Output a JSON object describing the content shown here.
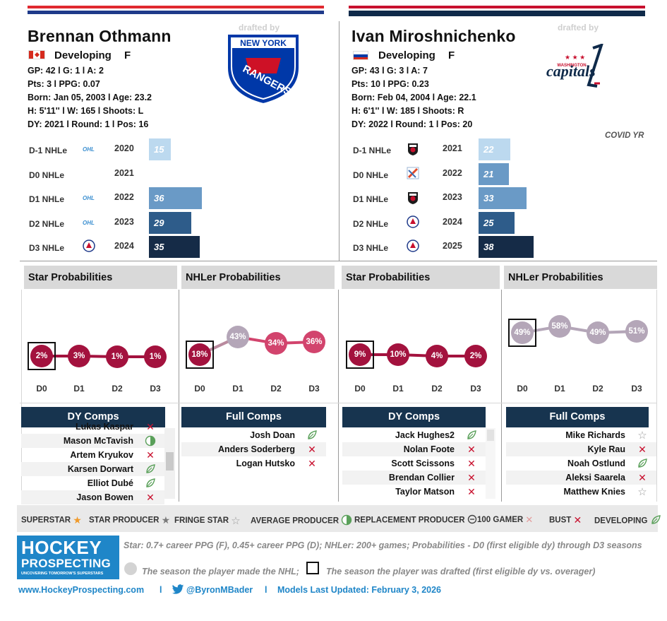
{
  "left": {
    "name": "Brennan Othmann",
    "status": "Developing",
    "position": "F",
    "line1": "GP: 42 l G: 1 l A: 2",
    "line2": "Pts: 3 l PPG: 0.07",
    "line3": "Born: Jan 05, 2003 l Age: 23.2",
    "line4": "H: 5'11'' l W: 165 l Shoots: L",
    "line5": "DY: 2021 l Round: 1 l Pos: 16",
    "drafted_by": "drafted by",
    "team_logo_text": [
      "NEW YORK",
      "RANGERS"
    ],
    "nhle": [
      {
        "label": "D-1 NHLe",
        "year": "2020",
        "value": 15,
        "league": "OHL"
      },
      {
        "label": "D0 NHLe",
        "year": "2021",
        "value": null,
        "league": ""
      },
      {
        "label": "D1 NHLe",
        "year": "2022",
        "value": 36,
        "league": "OHL"
      },
      {
        "label": "D2 NHLe",
        "year": "2023",
        "value": 29,
        "league": "OHL"
      },
      {
        "label": "D3 NHLe",
        "year": "2024",
        "value": 35,
        "league": "AHL"
      }
    ],
    "star_header": "Star Probabilities",
    "star_probs": [
      "2%",
      "3%",
      "1%",
      "1%"
    ],
    "star_values": [
      2,
      3,
      1,
      1
    ],
    "nhler_header": "NHLer Probabilities",
    "nhler_probs": [
      "18%",
      "43%",
      "34%",
      "36%"
    ],
    "nhler_values": [
      18,
      43,
      34,
      36
    ],
    "dy_header": "DY Comps",
    "dy_comps": [
      {
        "name": "Lukas Kaspar",
        "icon": "bust"
      },
      {
        "name": "Mason McTavish",
        "icon": "average"
      },
      {
        "name": "Artem Kryukov",
        "icon": "bust"
      },
      {
        "name": "Karsen Dorwart",
        "icon": "developing"
      },
      {
        "name": "Elliot Dubé",
        "icon": "developing"
      },
      {
        "name": "Jason Bowen",
        "icon": "bust"
      }
    ],
    "full_header": "Full Comps",
    "full_comps": [
      {
        "name": "Josh Doan",
        "icon": "developing"
      },
      {
        "name": "Anders Soderberg",
        "icon": "bust"
      },
      {
        "name": "Logan Hutsko",
        "icon": "bust"
      }
    ]
  },
  "right": {
    "name": "Ivan Miroshnichenko",
    "status": "Developing",
    "position": "F",
    "line1": "GP: 43 l G: 3 l A: 7",
    "line2": "Pts: 10 l PPG: 0.23",
    "line3": "Born: Feb 04, 2004 l Age: 22.1",
    "line4": "H: 6'1'' l W: 185 l Shoots: R",
    "line5": "DY: 2022 l Round: 1 l Pos: 20",
    "drafted_by": "drafted by",
    "team_logo_text": [
      "WASHINGTON",
      "capitals"
    ],
    "covid_note": "COVID YR",
    "nhle": [
      {
        "label": "D-1 NHLe",
        "year": "2021",
        "value": 22,
        "league": "MHL"
      },
      {
        "label": "D0 NHLe",
        "year": "2022",
        "value": 21,
        "league": "VHL"
      },
      {
        "label": "D1 NHLe",
        "year": "2023",
        "value": 33,
        "league": "MHL"
      },
      {
        "label": "D2 NHLe",
        "year": "2024",
        "value": 25,
        "league": "AHL"
      },
      {
        "label": "D3 NHLe",
        "year": "2025",
        "value": 38,
        "league": "AHL"
      }
    ],
    "star_header": "Star Probabilities",
    "star_probs": [
      "9%",
      "10%",
      "4%",
      "2%"
    ],
    "star_values": [
      9,
      10,
      4,
      2
    ],
    "nhler_header": "NHLer Probabilities",
    "nhler_probs": [
      "49%",
      "58%",
      "49%",
      "51%"
    ],
    "nhler_values": [
      49,
      58,
      49,
      51
    ],
    "dy_header": "DY Comps",
    "dy_comps": [
      {
        "name": "Jack Hughes2",
        "icon": "developing"
      },
      {
        "name": "Nolan Foote",
        "icon": "bust"
      },
      {
        "name": "Scott Scissons",
        "icon": "bust"
      },
      {
        "name": "Brendan Collier",
        "icon": "bust"
      },
      {
        "name": "Taylor Matson",
        "icon": "bust"
      }
    ],
    "full_header": "Full Comps",
    "full_comps": [
      {
        "name": "Mike Richards",
        "icon": "fringe"
      },
      {
        "name": "Kyle Rau",
        "icon": "bust"
      },
      {
        "name": "Noah Ostlund",
        "icon": "developing"
      },
      {
        "name": "Aleksi Saarela",
        "icon": "bust"
      },
      {
        "name": "Matthew Knies",
        "icon": "fringe"
      }
    ]
  },
  "x_labels": [
    "D0",
    "D1",
    "D2",
    "D3"
  ],
  "legend": [
    {
      "label": "SUPERSTAR",
      "icon": "superstar"
    },
    {
      "label": "STAR PRODUCER",
      "icon": "star"
    },
    {
      "label": "FRINGE STAR",
      "icon": "fringe"
    },
    {
      "label": "AVERAGE PRODUCER",
      "icon": "average"
    },
    {
      "label": "REPLACEMENT PRODUCER",
      "icon": "replacement"
    },
    {
      "label": "100 GAMER",
      "icon": "gamer"
    },
    {
      "label": "BUST",
      "icon": "bust"
    },
    {
      "label": "DEVELOPING",
      "icon": "developing"
    }
  ],
  "footer": {
    "brand_line1": "HOCKEY",
    "brand_line2": "PROSPECTING",
    "brand_tag": "UNCOVERING TOMORROW'S SUPERSTARS",
    "note1": "Star: 0.7+ career PPG (F), 0.45+ career PPG (D); NHLer: 200+ games; Probabilities - D0 (first eligible dy) through D3 seasons",
    "note2": "The season the player made the NHL;",
    "note3": "The season the player was drafted (first eligible dy vs. overager)",
    "website": "www.HockeyProspecting.com",
    "sep": "l",
    "twitter": "@ByronMBader",
    "updated": "Models Last Updated: February 3, 2026"
  },
  "colors": {
    "bar_light": "#bcd9ef",
    "bar_mid": "#6a9ac6",
    "bar_dark": "#2e5c8a",
    "bar_darkest": "#152b47",
    "star_dot": "#a3123e",
    "nhler_dot_pink": "#d2446d",
    "nhler_dot_gray": "#b4a6b8",
    "comp_header": "#17344f"
  }
}
